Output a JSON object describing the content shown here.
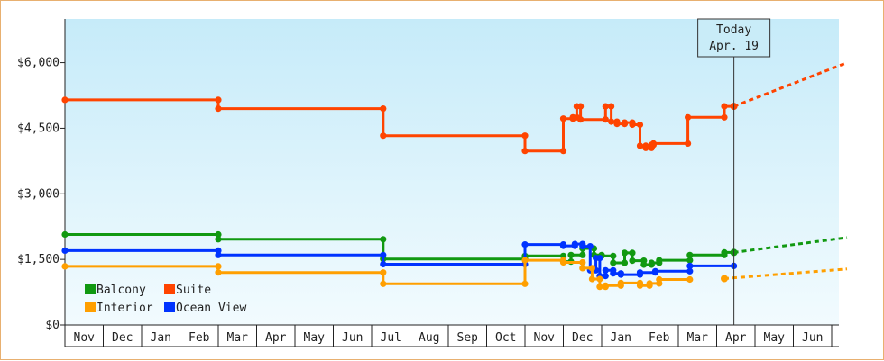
{
  "chart_data": {
    "type": "line",
    "title": "",
    "xlabel": "",
    "ylabel": "",
    "y_ticks": [
      "$0",
      "$1,500",
      "$3,000",
      "$4,500",
      "$6,000"
    ],
    "y_tick_values": [
      0,
      1500,
      3000,
      4500,
      6000
    ],
    "ylim": [
      0,
      7000
    ],
    "months": [
      "Nov",
      "Dec",
      "Jan",
      "Feb",
      "Mar",
      "Apr",
      "May",
      "Jun",
      "Jul",
      "Aug",
      "Sep",
      "Oct",
      "Nov",
      "Dec",
      "Jan",
      "Feb",
      "Mar",
      "Apr",
      "May",
      "Jun"
    ],
    "today": {
      "title": "Today",
      "date": "Apr. 19",
      "x": 17.45
    },
    "grid": false,
    "legend_position": "bottom-left",
    "series": [
      {
        "name": "Suite",
        "color": "#ff4400",
        "points": [
          [
            0,
            5150
          ],
          [
            4.0,
            5150
          ],
          [
            4.0,
            4950
          ],
          [
            8.3,
            4950
          ],
          [
            8.3,
            4330
          ],
          [
            12.0,
            4330
          ],
          [
            12.0,
            3980
          ],
          [
            13.0,
            3980
          ],
          [
            13.0,
            4720
          ],
          [
            13.25,
            4720
          ],
          [
            13.25,
            4750
          ],
          [
            13.35,
            4750
          ],
          [
            13.35,
            5000
          ],
          [
            13.45,
            5000
          ],
          [
            13.45,
            4700
          ],
          [
            14.1,
            4700
          ],
          [
            14.1,
            5000
          ],
          [
            14.25,
            5000
          ],
          [
            14.25,
            4650
          ],
          [
            14.4,
            4650
          ],
          [
            14.4,
            4600
          ],
          [
            14.6,
            4600
          ],
          [
            14.6,
            4630
          ],
          [
            14.8,
            4630
          ],
          [
            14.8,
            4580
          ],
          [
            15.0,
            4580
          ],
          [
            15.0,
            4100
          ],
          [
            15.15,
            4100
          ],
          [
            15.15,
            4050
          ],
          [
            15.3,
            4050
          ],
          [
            15.3,
            4120
          ],
          [
            15.35,
            4120
          ],
          [
            15.35,
            4150
          ],
          [
            16.25,
            4150
          ],
          [
            16.25,
            4750
          ],
          [
            17.2,
            4750
          ],
          [
            17.2,
            5000
          ],
          [
            17.45,
            5000
          ]
        ],
        "forecast": [
          [
            17.45,
            5000
          ],
          [
            20.4,
            6000
          ]
        ]
      },
      {
        "name": "Balcony",
        "color": "#119911",
        "points": [
          [
            0,
            2070
          ],
          [
            4.0,
            2070
          ],
          [
            4.0,
            1960
          ],
          [
            8.3,
            1960
          ],
          [
            8.3,
            1510
          ],
          [
            12.0,
            1510
          ],
          [
            12.0,
            1580
          ],
          [
            13.0,
            1580
          ],
          [
            13.0,
            1450
          ],
          [
            13.2,
            1450
          ],
          [
            13.2,
            1600
          ],
          [
            13.5,
            1600
          ],
          [
            13.5,
            1750
          ],
          [
            13.8,
            1750
          ],
          [
            13.8,
            1600
          ],
          [
            14.0,
            1600
          ],
          [
            14.0,
            1580
          ],
          [
            14.3,
            1580
          ],
          [
            14.3,
            1420
          ],
          [
            14.6,
            1420
          ],
          [
            14.6,
            1650
          ],
          [
            14.8,
            1650
          ],
          [
            14.8,
            1470
          ],
          [
            15.1,
            1470
          ],
          [
            15.1,
            1380
          ],
          [
            15.3,
            1380
          ],
          [
            15.3,
            1420
          ],
          [
            15.5,
            1420
          ],
          [
            15.5,
            1480
          ],
          [
            16.3,
            1480
          ],
          [
            16.3,
            1600
          ],
          [
            17.2,
            1600
          ],
          [
            17.2,
            1660
          ],
          [
            17.45,
            1660
          ]
        ],
        "forecast": [
          [
            17.45,
            1660
          ],
          [
            20.4,
            2000
          ]
        ]
      },
      {
        "name": "Ocean View",
        "color": "#0033ff",
        "points": [
          [
            0,
            1700
          ],
          [
            4.0,
            1700
          ],
          [
            4.0,
            1600
          ],
          [
            8.3,
            1600
          ],
          [
            8.3,
            1390
          ],
          [
            12.0,
            1390
          ],
          [
            12.0,
            1840
          ],
          [
            13.0,
            1840
          ],
          [
            13.0,
            1810
          ],
          [
            13.3,
            1810
          ],
          [
            13.3,
            1850
          ],
          [
            13.5,
            1850
          ],
          [
            13.5,
            1800
          ],
          [
            13.7,
            1800
          ],
          [
            13.7,
            1250
          ],
          [
            13.85,
            1250
          ],
          [
            13.85,
            1530
          ],
          [
            13.95,
            1530
          ],
          [
            13.95,
            1120
          ],
          [
            14.1,
            1120
          ],
          [
            14.1,
            1250
          ],
          [
            14.3,
            1250
          ],
          [
            14.3,
            1180
          ],
          [
            14.5,
            1180
          ],
          [
            14.5,
            1150
          ],
          [
            15.0,
            1150
          ],
          [
            15.0,
            1200
          ],
          [
            15.4,
            1200
          ],
          [
            15.4,
            1230
          ],
          [
            16.3,
            1230
          ],
          [
            16.3,
            1350
          ],
          [
            17.45,
            1350
          ]
        ]
      },
      {
        "name": "Interior",
        "color": "#ff9f00",
        "points": [
          [
            0,
            1340
          ],
          [
            4.0,
            1340
          ],
          [
            4.0,
            1200
          ],
          [
            8.3,
            1200
          ],
          [
            8.3,
            940
          ],
          [
            12.0,
            940
          ],
          [
            12.0,
            1480
          ],
          [
            13.0,
            1480
          ],
          [
            13.0,
            1430
          ],
          [
            13.5,
            1430
          ],
          [
            13.5,
            1300
          ],
          [
            13.75,
            1300
          ],
          [
            13.75,
            1050
          ],
          [
            13.95,
            1050
          ],
          [
            13.95,
            870
          ],
          [
            14.1,
            870
          ],
          [
            14.1,
            900
          ],
          [
            14.5,
            900
          ],
          [
            14.5,
            960
          ],
          [
            15.0,
            960
          ],
          [
            15.0,
            900
          ],
          [
            15.25,
            900
          ],
          [
            15.25,
            950
          ],
          [
            15.5,
            950
          ],
          [
            15.5,
            1040
          ],
          [
            16.3,
            1040
          ]
        ],
        "forecast": [
          [
            17.2,
            1060
          ],
          [
            20.4,
            1280
          ]
        ]
      }
    ],
    "legend": [
      {
        "name": "Balcony",
        "color": "#119911"
      },
      {
        "name": "Suite",
        "color": "#ff4400"
      },
      {
        "name": "Interior",
        "color": "#ff9f00"
      },
      {
        "name": "Ocean View",
        "color": "#0033ff"
      }
    ]
  }
}
